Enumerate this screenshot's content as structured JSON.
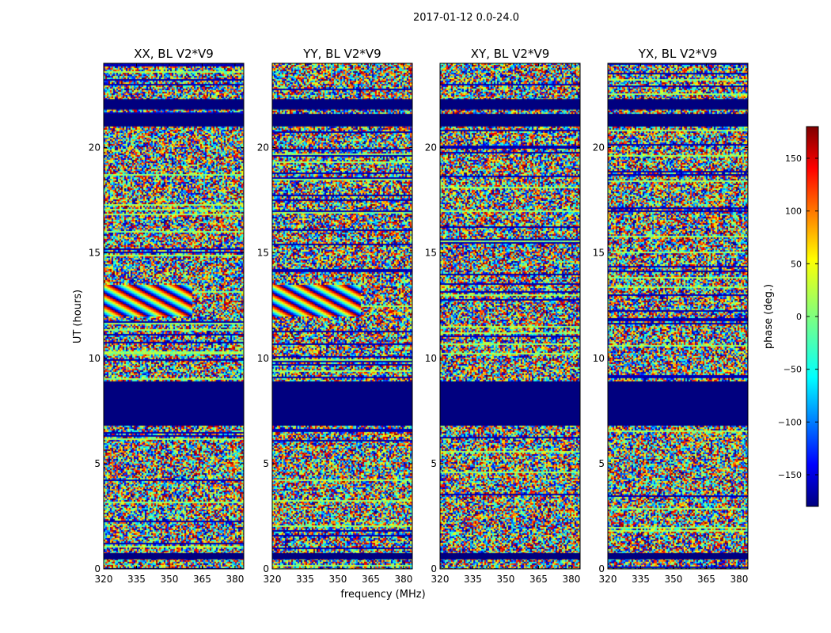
{
  "figure": {
    "suptitle": "2017-01-12 0.0-24.0"
  },
  "chart_data": [
    {
      "type": "heatmap",
      "title": "XX, BL V2*V9",
      "xlabel": "",
      "ylabel": "UT (hours)",
      "x_ticks": [
        320,
        335,
        350,
        365,
        380
      ],
      "y_ticks": [
        0,
        5,
        10,
        15,
        20
      ],
      "xlim": [
        320,
        384
      ],
      "ylim": [
        0,
        24
      ],
      "flagged_bands_hours": [
        [
          0.45,
          0.75
        ],
        [
          6.8,
          8.9
        ],
        [
          21.0,
          21.6
        ],
        [
          21.8,
          22.3
        ]
      ],
      "wrap_feature": {
        "t0": 12.0,
        "t1": 13.5,
        "f0": 320,
        "f1": 360
      }
    },
    {
      "type": "heatmap",
      "title": "YY, BL V2*V9",
      "xlabel": "frequency (MHz)",
      "ylabel": "",
      "x_ticks": [
        320,
        335,
        350,
        365,
        380
      ],
      "y_ticks": [
        0,
        5,
        10,
        15,
        20
      ],
      "xlim": [
        320,
        384
      ],
      "ylim": [
        0,
        24
      ],
      "flagged_bands_hours": [
        [
          0.45,
          0.75
        ],
        [
          6.8,
          8.9
        ],
        [
          21.0,
          21.6
        ],
        [
          21.8,
          22.3
        ]
      ],
      "wrap_feature": {
        "t0": 12.0,
        "t1": 13.5,
        "f0": 320,
        "f1": 360
      }
    },
    {
      "type": "heatmap",
      "title": "XY, BL V2*V9",
      "xlabel": "",
      "ylabel": "",
      "x_ticks": [
        320,
        335,
        350,
        365,
        380
      ],
      "y_ticks": [
        0,
        5,
        10,
        15,
        20
      ],
      "xlim": [
        320,
        384
      ],
      "ylim": [
        0,
        24
      ],
      "flagged_bands_hours": [
        [
          0.45,
          0.75
        ],
        [
          6.8,
          8.9
        ],
        [
          21.0,
          21.6
        ],
        [
          21.8,
          22.3
        ]
      ],
      "wrap_feature": null
    },
    {
      "type": "heatmap",
      "title": "YX, BL V2*V9",
      "xlabel": "",
      "ylabel": "",
      "x_ticks": [
        320,
        335,
        350,
        365,
        380
      ],
      "y_ticks": [
        0,
        5,
        10,
        15,
        20
      ],
      "xlim": [
        320,
        384
      ],
      "ylim": [
        0,
        24
      ],
      "flagged_bands_hours": [
        [
          0.45,
          0.75
        ],
        [
          6.8,
          8.9
        ],
        [
          21.0,
          21.6
        ],
        [
          21.8,
          22.3
        ]
      ],
      "wrap_feature": null
    }
  ],
  "colorbar": {
    "label": "phase (deg.)",
    "min": -180,
    "max": 180,
    "ticks": [
      150,
      100,
      50,
      0,
      -50,
      -100,
      -150
    ],
    "tick_labels": [
      "150",
      "100",
      "50",
      "0",
      "−50",
      "−100",
      "−150"
    ],
    "colormap": "jet"
  }
}
